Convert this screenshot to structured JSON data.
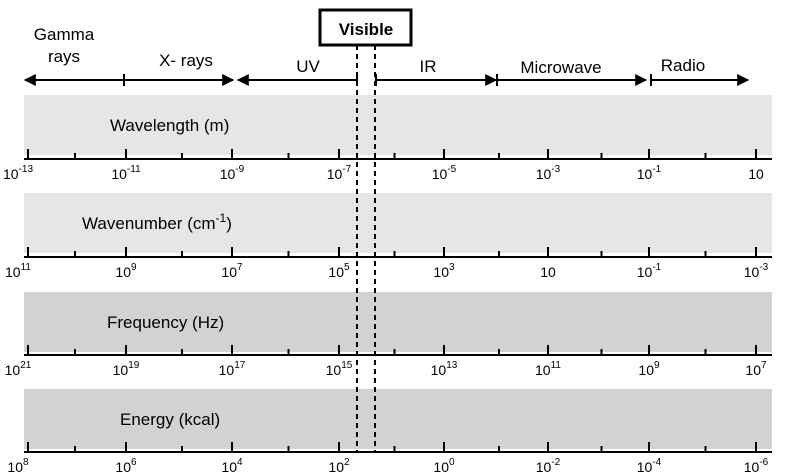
{
  "visible_label": "Visible",
  "regions": [
    {
      "lines": [
        "Gamma",
        "rays"
      ],
      "arrow": "left"
    },
    {
      "lines": [
        "X- rays"
      ],
      "arrow": "both"
    },
    {
      "lines": [
        "UV"
      ],
      "arrow": "left"
    },
    {
      "lines": [
        "IR"
      ],
      "arrow": "right"
    },
    {
      "lines": [
        "Microwave"
      ],
      "arrow": "both"
    },
    {
      "lines": [
        "Radio"
      ],
      "arrow": "right"
    }
  ],
  "bands": [
    {
      "label": "Wavelength (m)",
      "label_sup": "",
      "label_suffix": "",
      "fill": "#e6e6e6",
      "ticks": [
        {
          "base": "10",
          "exp": "-13"
        },
        {
          "base": "10",
          "exp": "-11"
        },
        {
          "base": "10",
          "exp": "-9"
        },
        {
          "base": "10",
          "exp": "-7"
        },
        {
          "base": "10",
          "exp": "-5"
        },
        {
          "base": "10",
          "exp": "-3"
        },
        {
          "base": "10",
          "exp": "-1"
        },
        {
          "base": "10",
          "exp": ""
        }
      ]
    },
    {
      "label": "Wavenumber  (cm",
      "label_sup": "-1",
      "label_suffix": ")",
      "fill": "#e6e6e6",
      "ticks": [
        {
          "base": "10",
          "exp": "11"
        },
        {
          "base": "10",
          "exp": "9"
        },
        {
          "base": "10",
          "exp": "7"
        },
        {
          "base": "10",
          "exp": "5"
        },
        {
          "base": "10",
          "exp": "3"
        },
        {
          "base": "10",
          "exp": ""
        },
        {
          "base": "10",
          "exp": "-1"
        },
        {
          "base": "10",
          "exp": "-3"
        }
      ]
    },
    {
      "label": "Frequency  (Hz)",
      "label_sup": "",
      "label_suffix": "",
      "fill": "#d2d2d2",
      "ticks": [
        {
          "base": "10",
          "exp": "21"
        },
        {
          "base": "10",
          "exp": "19"
        },
        {
          "base": "10",
          "exp": "17"
        },
        {
          "base": "10",
          "exp": "15"
        },
        {
          "base": "10",
          "exp": "13"
        },
        {
          "base": "10",
          "exp": "11"
        },
        {
          "base": "10",
          "exp": "9"
        },
        {
          "base": "10",
          "exp": "7"
        }
      ]
    },
    {
      "label": "Energy  (kcal)",
      "label_sup": "",
      "label_suffix": "",
      "fill": "#d2d2d2",
      "ticks": [
        {
          "base": "10",
          "exp": "8"
        },
        {
          "base": "10",
          "exp": "6"
        },
        {
          "base": "10",
          "exp": "4"
        },
        {
          "base": "10",
          "exp": "2"
        },
        {
          "base": "10",
          "exp": "0"
        },
        {
          "base": "10",
          "exp": "-2"
        },
        {
          "base": "10",
          "exp": "-4"
        },
        {
          "base": "10",
          "exp": "-6"
        }
      ]
    }
  ]
}
